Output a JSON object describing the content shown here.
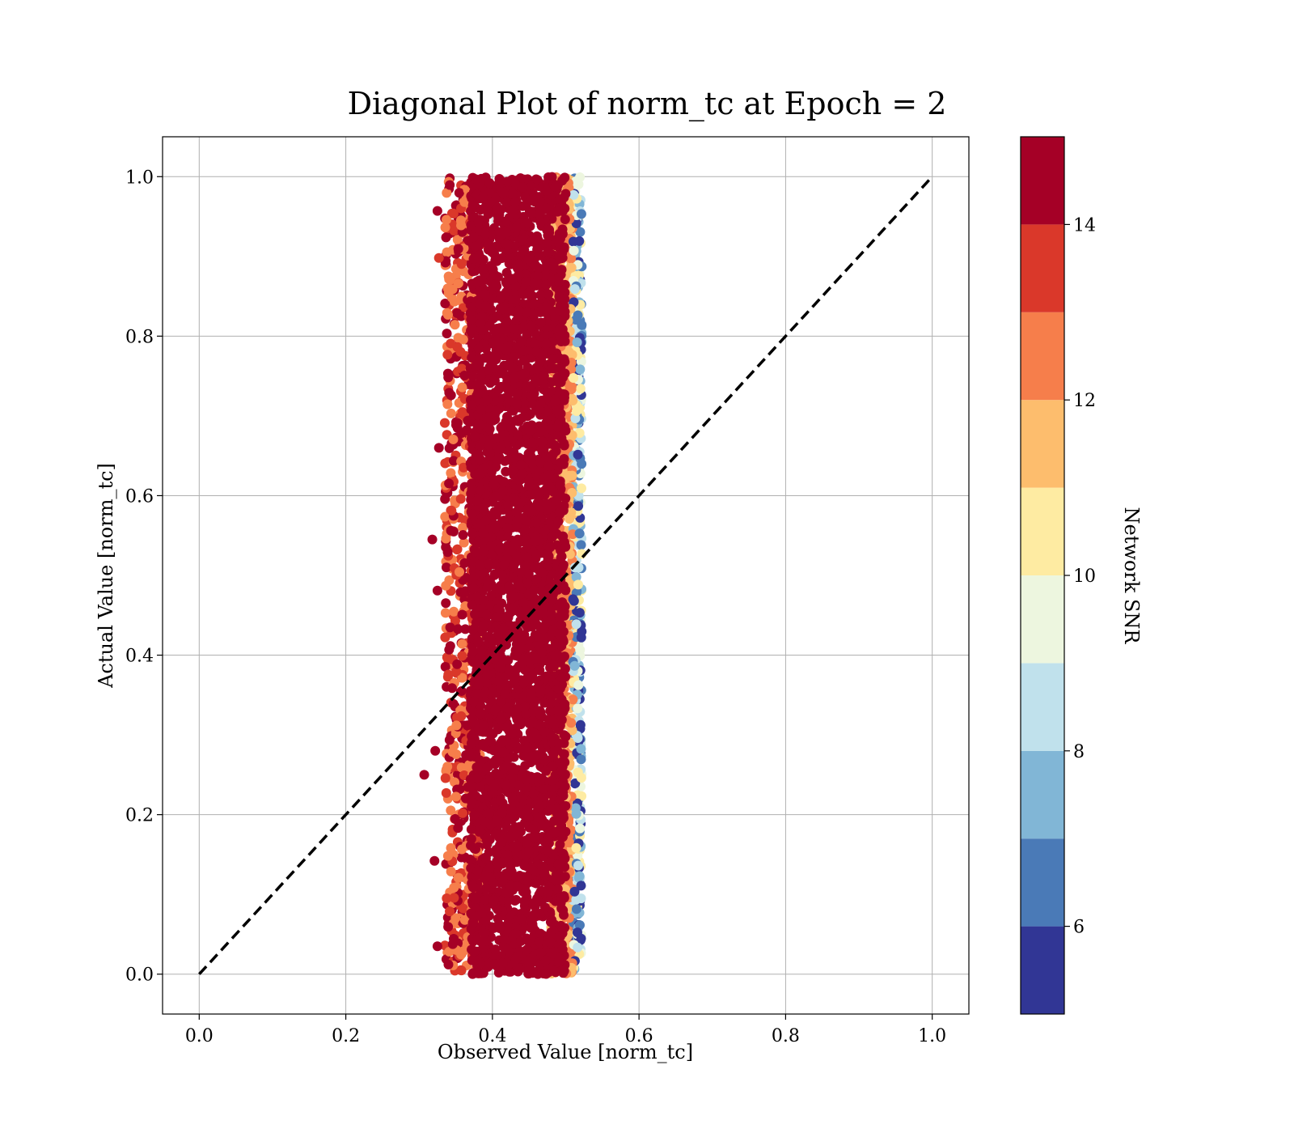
{
  "chart_data": {
    "type": "scatter",
    "title": "Diagonal Plot of norm_tc at Epoch = 2",
    "xlabel": "Observed Value [norm_tc]",
    "ylabel": "Actual Value [norm_tc]",
    "xlim": [
      -0.05,
      1.05
    ],
    "ylim": [
      -0.05,
      1.05
    ],
    "x_ticks": [
      0.0,
      0.2,
      0.4,
      0.6,
      0.8,
      1.0
    ],
    "y_ticks": [
      0.0,
      0.2,
      0.4,
      0.6,
      0.8,
      1.0
    ],
    "x_tick_labels": [
      "0.0",
      "0.2",
      "0.4",
      "0.6",
      "0.8",
      "1.0"
    ],
    "y_tick_labels": [
      "0.0",
      "0.2",
      "0.4",
      "0.6",
      "0.8",
      "1.0"
    ],
    "grid": true,
    "reference_line": {
      "style": "dashed",
      "color": "#000000",
      "x": [
        0.0,
        1.0
      ],
      "y": [
        0.0,
        1.0
      ]
    },
    "points": {
      "x_range": [
        0.31,
        0.52
      ],
      "y_range": [
        0.0,
        1.0
      ],
      "dense_core_x_range": [
        0.37,
        0.5
      ],
      "color_by": "Network SNR",
      "outliers": [
        {
          "x": 0.307,
          "y": 0.25,
          "snr": 14
        },
        {
          "x": 0.325,
          "y": 0.957,
          "snr": 14
        },
        {
          "x": 0.327,
          "y": 0.898,
          "snr": 13
        },
        {
          "x": 0.318,
          "y": 0.545,
          "snr": 15
        },
        {
          "x": 0.325,
          "y": 0.481,
          "snr": 15
        },
        {
          "x": 0.322,
          "y": 0.28,
          "snr": 15
        },
        {
          "x": 0.321,
          "y": 0.142,
          "snr": 15
        },
        {
          "x": 0.325,
          "y": 0.035,
          "snr": 15
        },
        {
          "x": 0.34,
          "y": 0.012,
          "snr": 15
        },
        {
          "x": 0.327,
          "y": 0.66,
          "snr": 15
        }
      ]
    },
    "colorbar": {
      "label": "Network SNR",
      "range": [
        5,
        15
      ],
      "ticks": [
        6,
        8,
        10,
        12,
        14
      ],
      "tick_labels": [
        "6",
        "8",
        "10",
        "12",
        "14"
      ],
      "bins": [
        {
          "from": 5,
          "to": 6,
          "color": "#313695"
        },
        {
          "from": 6,
          "to": 7,
          "color": "#4a7ab7"
        },
        {
          "from": 7,
          "to": 8,
          "color": "#81b6d6"
        },
        {
          "from": 8,
          "to": 9,
          "color": "#c0e1ec"
        },
        {
          "from": 9,
          "to": 10,
          "color": "#edf6df"
        },
        {
          "from": 10,
          "to": 11,
          "color": "#feeba2"
        },
        {
          "from": 11,
          "to": 12,
          "color": "#fdbd6d"
        },
        {
          "from": 12,
          "to": 13,
          "color": "#f67e4b"
        },
        {
          "from": 13,
          "to": 14,
          "color": "#da382a"
        },
        {
          "from": 14,
          "to": 15,
          "color": "#a50026"
        }
      ]
    }
  }
}
